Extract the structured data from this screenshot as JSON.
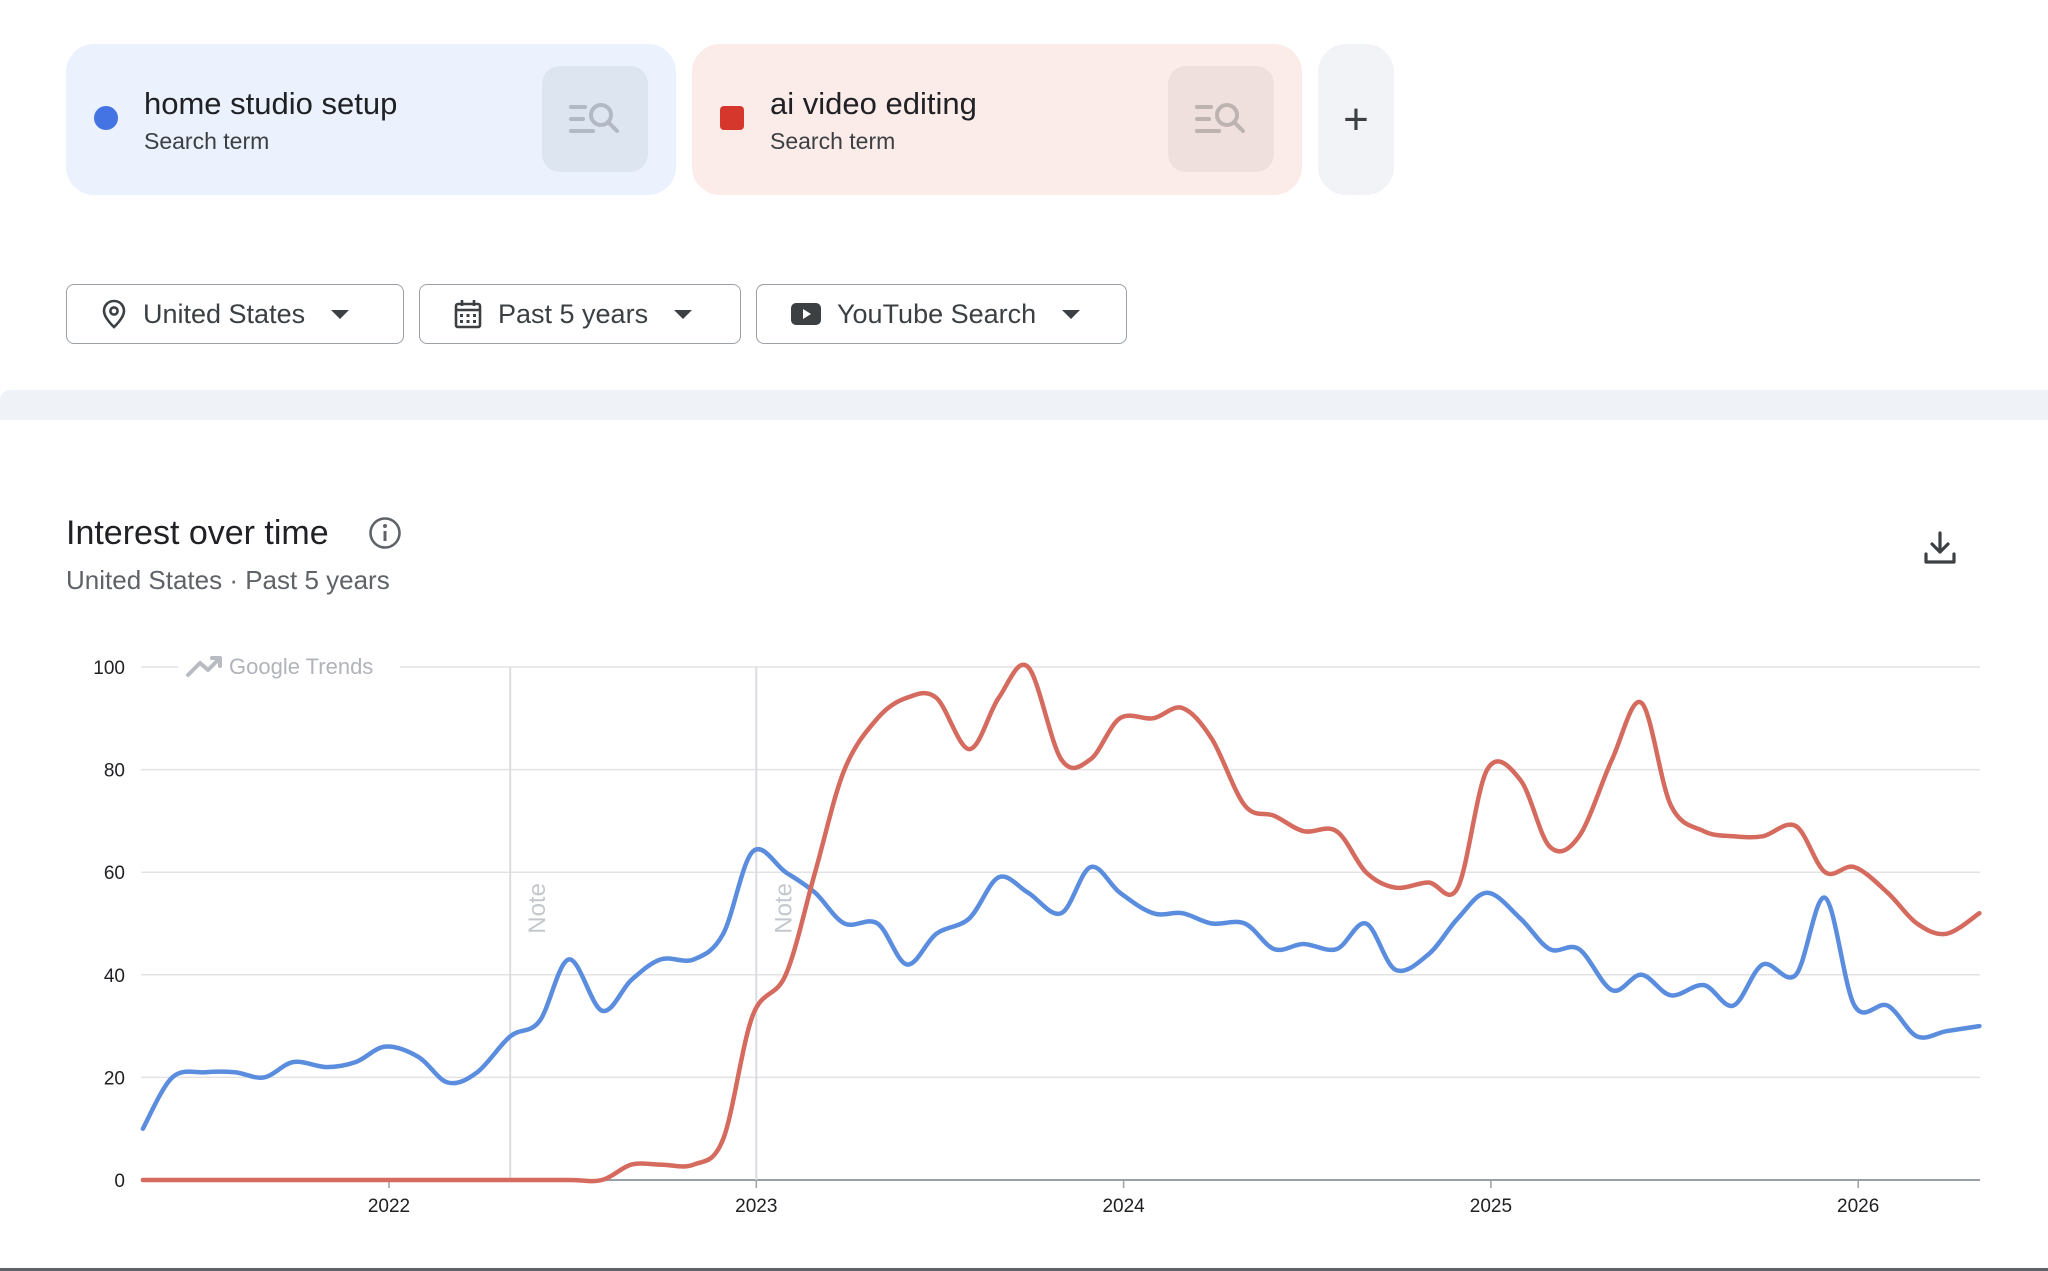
{
  "terms": [
    {
      "name": "home studio setup",
      "type": "Search term",
      "color": "#4473e3"
    },
    {
      "name": "ai video editing",
      "type": "Search term",
      "color": "#d6372c"
    }
  ],
  "add_label": "+",
  "filters": {
    "location": "United States",
    "time": "Past 5 years",
    "property": "YouTube Search"
  },
  "section": {
    "title": "Interest over time",
    "subtitle": "United States · Past 5 years"
  },
  "chart_data": {
    "type": "line",
    "watermark": "Google Trends",
    "notes": [
      {
        "x": 2022.33,
        "label": "Note"
      },
      {
        "x": 2023.0,
        "label": "Note"
      }
    ],
    "xticks": [
      2022,
      2023,
      2024,
      2025,
      2026
    ],
    "yticks": [
      0,
      20,
      40,
      60,
      80,
      100
    ],
    "ylim": [
      0,
      100
    ],
    "xlim": [
      2021.32,
      2026.33
    ],
    "grid": true,
    "series": [
      {
        "name": "home studio setup",
        "color": "#5b8ddf",
        "x": [
          2021.33,
          2021.41,
          2021.5,
          2021.58,
          2021.66,
          2021.74,
          2021.83,
          2021.91,
          2021.99,
          2022.08,
          2022.16,
          2022.24,
          2022.33,
          2022.41,
          2022.49,
          2022.58,
          2022.66,
          2022.74,
          2022.83,
          2022.91,
          2022.99,
          2023.08,
          2023.16,
          2023.24,
          2023.33,
          2023.41,
          2023.49,
          2023.58,
          2023.66,
          2023.74,
          2023.83,
          2023.91,
          2023.99,
          2024.08,
          2024.16,
          2024.24,
          2024.33,
          2024.41,
          2024.49,
          2024.58,
          2024.66,
          2024.74,
          2024.83,
          2024.91,
          2024.99,
          2025.08,
          2025.16,
          2025.24,
          2025.33,
          2025.41,
          2025.49,
          2025.58,
          2025.66,
          2025.74,
          2025.83,
          2025.91,
          2025.99,
          2026.08,
          2026.16,
          2026.24,
          2026.33
        ],
        "y": [
          10,
          20,
          21,
          21,
          20,
          23,
          22,
          23,
          26,
          24,
          19,
          21,
          28,
          31,
          43,
          33,
          39,
          43,
          43,
          48,
          64,
          60,
          56,
          50,
          50,
          42,
          48,
          51,
          59,
          56,
          52,
          61,
          56,
          52,
          52,
          50,
          50,
          45,
          46,
          45,
          50,
          41,
          44,
          51,
          56,
          51,
          45,
          45,
          37,
          40,
          36,
          38,
          34,
          42,
          40,
          55,
          34,
          34,
          28,
          29,
          30
        ]
      },
      {
        "name": "ai video editing",
        "color": "#d56b5e",
        "x": [
          2021.33,
          2021.5,
          2021.66,
          2021.83,
          2021.99,
          2022.16,
          2022.33,
          2022.49,
          2022.58,
          2022.66,
          2022.74,
          2022.83,
          2022.91,
          2022.99,
          2023.08,
          2023.16,
          2023.24,
          2023.33,
          2023.41,
          2023.49,
          2023.58,
          2023.66,
          2023.74,
          2023.83,
          2023.91,
          2023.99,
          2024.08,
          2024.16,
          2024.24,
          2024.33,
          2024.41,
          2024.49,
          2024.58,
          2024.66,
          2024.74,
          2024.83,
          2024.91,
          2024.99,
          2025.08,
          2025.16,
          2025.24,
          2025.33,
          2025.41,
          2025.49,
          2025.58,
          2025.66,
          2025.74,
          2025.83,
          2025.91,
          2025.99,
          2026.08,
          2026.16,
          2026.24,
          2026.33
        ],
        "y": [
          0,
          0,
          0,
          0,
          0,
          0,
          0,
          0,
          0,
          3,
          3,
          3,
          8,
          32,
          40,
          60,
          80,
          90,
          94,
          94,
          84,
          94,
          100,
          82,
          82,
          90,
          90,
          92,
          86,
          73,
          71,
          68,
          68,
          60,
          57,
          58,
          57,
          80,
          78,
          65,
          67,
          82,
          93,
          73,
          68,
          67,
          67,
          69,
          60,
          61,
          56,
          50,
          48,
          52
        ]
      }
    ]
  }
}
